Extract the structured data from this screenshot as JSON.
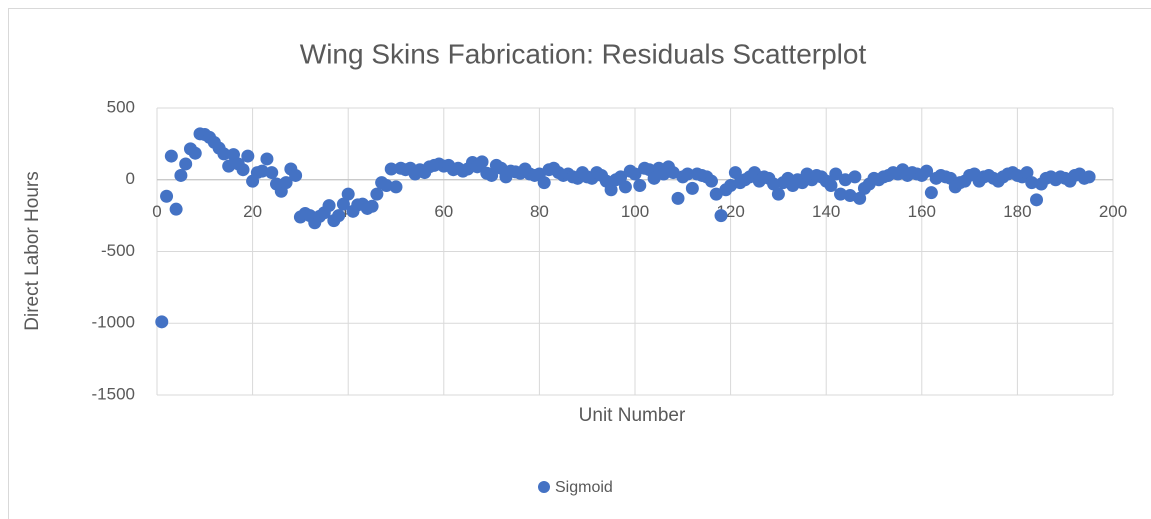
{
  "chart_data": {
    "type": "scatter",
    "title": "Wing Skins Fabrication: Residuals Scatterplot",
    "x_label": "Unit Number",
    "y_label": "Direct Labor Hours",
    "xlim": [
      0,
      200
    ],
    "xticks": [
      0,
      20,
      40,
      60,
      80,
      100,
      120,
      140,
      160,
      180,
      200
    ],
    "ylim": [
      -1500,
      500
    ],
    "yticks": [
      -1500,
      -1000,
      -500,
      0,
      500
    ],
    "grid": true,
    "legend": "bottom",
    "x": [
      1,
      2,
      3,
      4,
      5,
      6,
      7,
      8,
      9,
      10,
      11,
      12,
      13,
      14,
      15,
      16,
      17,
      18,
      19,
      20,
      21,
      22,
      23,
      24,
      25,
      26,
      27,
      28,
      29,
      30,
      31,
      32,
      33,
      34,
      35,
      36,
      37,
      38,
      39,
      40,
      41,
      42,
      43,
      44,
      45,
      46,
      47,
      48,
      49,
      50,
      51,
      52,
      53,
      54,
      55,
      56,
      57,
      58,
      59,
      60,
      61,
      62,
      63,
      64,
      65,
      66,
      67,
      68,
      69,
      70,
      71,
      72,
      73,
      74,
      75,
      76,
      77,
      78,
      79,
      80,
      81,
      82,
      83,
      84,
      85,
      86,
      87,
      88,
      89,
      90,
      91,
      92,
      93,
      94,
      95,
      96,
      97,
      98,
      99,
      100,
      101,
      102,
      103,
      104,
      105,
      106,
      107,
      108,
      109,
      110,
      111,
      112,
      113,
      114,
      115,
      116,
      117,
      118,
      119,
      120,
      121,
      122,
      123,
      124,
      125,
      126,
      127,
      128,
      129,
      130,
      131,
      132,
      133,
      134,
      135,
      136,
      137,
      138,
      139,
      140,
      141,
      142,
      143,
      144,
      145,
      146,
      147,
      148,
      149,
      150,
      151,
      152,
      153,
      154,
      155,
      156,
      157,
      158,
      159,
      160,
      161,
      162,
      163,
      164,
      165,
      166,
      167,
      168,
      169,
      170,
      171,
      172,
      173,
      174,
      175,
      176,
      177,
      178,
      179,
      180,
      181,
      182,
      183,
      184,
      185,
      186,
      187,
      188,
      189,
      190,
      191,
      192,
      193,
      194,
      195
    ],
    "series": [
      {
        "name": "Sigmoid",
        "color": "#4472c4",
        "values": [
          -990,
          -115,
          165,
          -205,
          30,
          110,
          215,
          185,
          320,
          315,
          295,
          260,
          220,
          180,
          95,
          175,
          110,
          70,
          165,
          -10,
          50,
          60,
          145,
          50,
          -30,
          -80,
          -20,
          75,
          30,
          -260,
          -235,
          -250,
          -300,
          -255,
          -230,
          -180,
          -285,
          -250,
          -170,
          -100,
          -220,
          -175,
          -170,
          -200,
          -185,
          -100,
          -20,
          -40,
          75,
          -50,
          80,
          70,
          80,
          40,
          70,
          50,
          90,
          100,
          110,
          95,
          100,
          70,
          80,
          60,
          75,
          120,
          90,
          125,
          45,
          30,
          100,
          80,
          20,
          60,
          55,
          45,
          75,
          40,
          30,
          40,
          -20,
          70,
          80,
          50,
          30,
          40,
          20,
          10,
          50,
          20,
          10,
          50,
          30,
          -10,
          -70,
          0,
          20,
          -50,
          60,
          40,
          -40,
          80,
          70,
          10,
          80,
          40,
          90,
          50,
          -130,
          20,
          40,
          -60,
          40,
          30,
          20,
          -10,
          -100,
          -250,
          -70,
          -40,
          50,
          -20,
          0,
          20,
          50,
          -10,
          20,
          10,
          -30,
          -100,
          -20,
          10,
          -40,
          0,
          -20,
          40,
          0,
          30,
          20,
          -10,
          -40,
          40,
          -100,
          0,
          -110,
          20,
          -130,
          -60,
          -30,
          10,
          0,
          20,
          30,
          50,
          40,
          70,
          30,
          50,
          40,
          30,
          60,
          -90,
          10,
          30,
          20,
          10,
          -50,
          -20,
          -10,
          30,
          40,
          -10,
          20,
          30,
          10,
          -10,
          20,
          40,
          50,
          30,
          20,
          50,
          -20,
          -140,
          -30,
          10,
          20,
          0,
          20,
          10,
          -10,
          30,
          40,
          10,
          20
        ]
      }
    ]
  }
}
